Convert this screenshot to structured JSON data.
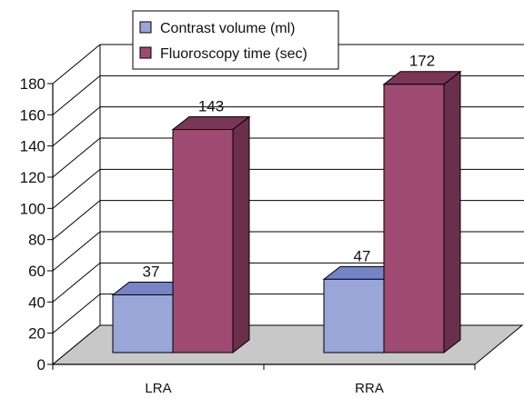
{
  "chart_data": {
    "type": "bar",
    "style": "3d-clustered",
    "categories": [
      "LRA",
      "RRA"
    ],
    "series": [
      {
        "name": "Contrast  volume (ml)",
        "values": [
          37,
          47
        ],
        "color": "#9aa5d8",
        "side": "#6d7bc1",
        "top": "#7484c6"
      },
      {
        "name": "Fluoroscopy time (sec)",
        "values": [
          143,
          172
        ],
        "color": "#9e4a72",
        "side": "#6b2f4c",
        "top": "#7a3657"
      }
    ],
    "data_labels": [
      "37",
      "47",
      "143",
      "172"
    ],
    "ylim": [
      0,
      180
    ],
    "yticks": [
      "0",
      "20",
      "40",
      "60",
      "80",
      "100",
      "120",
      "140",
      "160",
      "180"
    ],
    "grid": true,
    "legend": "top-center",
    "floor_color": "#c8c8c8"
  }
}
